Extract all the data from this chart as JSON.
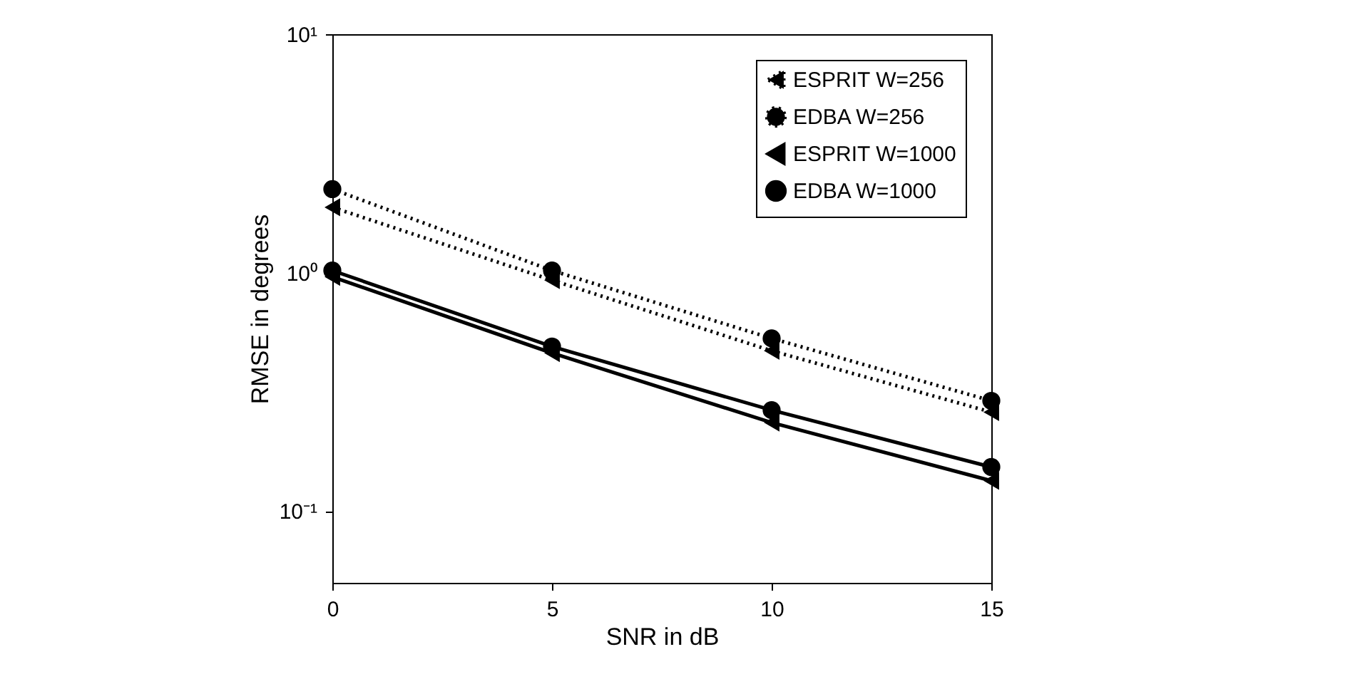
{
  "chart_data": {
    "type": "line",
    "xlabel": "SNR in dB",
    "ylabel": "RMSE in degrees",
    "x": [
      0,
      5,
      10,
      15
    ],
    "series": [
      {
        "name": "ESPRIT W=256",
        "color": "#000000",
        "marker": "triangle",
        "line_style": "dotted",
        "values": [
          1.88,
          0.93,
          0.47,
          0.26
        ]
      },
      {
        "name": "EDBA W=256",
        "color": "#000000",
        "marker": "circle",
        "line_style": "dotted",
        "values": [
          2.24,
          1.02,
          0.53,
          0.29
        ]
      },
      {
        "name": "ESPRIT W=1000",
        "color": "#000000",
        "marker": "triangle",
        "line_style": "solid",
        "values": [
          0.96,
          0.46,
          0.235,
          0.134
        ]
      },
      {
        "name": "EDBA W=1000",
        "color": "#000000",
        "marker": "circle",
        "line_style": "solid",
        "values": [
          1.02,
          0.49,
          0.265,
          0.153
        ]
      }
    ],
    "xlim": [
      0,
      15
    ],
    "xticks": [
      0,
      5,
      10,
      15
    ],
    "ylim": [
      0.05,
      10
    ],
    "yticks": [
      {
        "value": 0.1,
        "label": "10⁻¹"
      },
      {
        "value": 1,
        "label": "10⁰"
      },
      {
        "value": 10,
        "label": "10¹"
      }
    ],
    "log": "y",
    "grid": false,
    "legend": "top right"
  }
}
